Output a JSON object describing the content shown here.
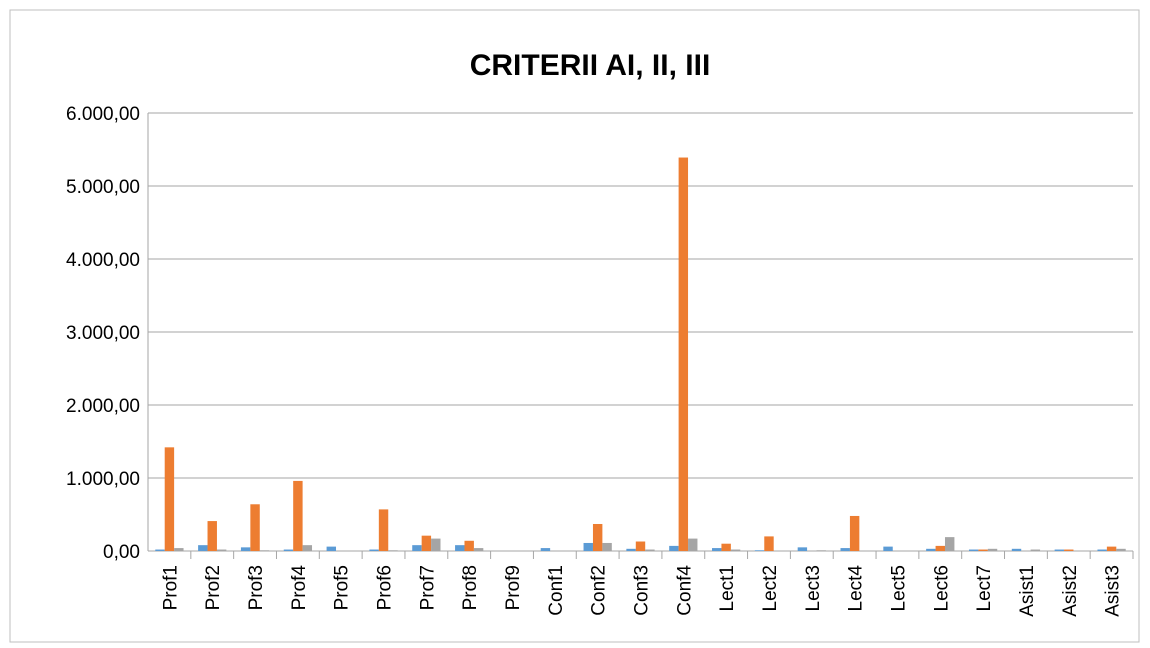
{
  "chart_data": {
    "type": "bar",
    "title": "CRITERII AI, II, III",
    "categories": [
      "Prof1",
      "Prof2",
      "Prof3",
      "Prof4",
      "Prof5",
      "Prof6",
      "Prof7",
      "Prof8",
      "Prof9",
      "Conf1",
      "Conf2",
      "Conf3",
      "Conf4",
      "Lect1",
      "Lect2",
      "Lect3",
      "Lect4",
      "Lect5",
      "Lect6",
      "Lect7",
      "Asist1",
      "Asist2",
      "Asist3"
    ],
    "series": [
      {
        "color": "#5b9bd5",
        "values": [
          20,
          80,
          50,
          20,
          60,
          20,
          80,
          80,
          0,
          40,
          110,
          30,
          70,
          40,
          10,
          50,
          40,
          60,
          30,
          20,
          30,
          20,
          20
        ]
      },
      {
        "color": "#ed7d31",
        "values": [
          1420,
          410,
          640,
          960,
          0,
          570,
          210,
          140,
          0,
          0,
          370,
          130,
          5390,
          100,
          200,
          0,
          480,
          0,
          70,
          20,
          0,
          20,
          60
        ]
      },
      {
        "color": "#a5a5a5",
        "values": [
          40,
          20,
          10,
          80,
          0,
          10,
          170,
          40,
          0,
          0,
          110,
          20,
          170,
          20,
          0,
          10,
          0,
          0,
          190,
          30,
          20,
          0,
          30
        ]
      }
    ],
    "ylim": [
      0,
      6000
    ],
    "yticks": [
      {
        "value": 0,
        "label": "0,00"
      },
      {
        "value": 1000,
        "label": "1.000,00"
      },
      {
        "value": 2000,
        "label": "2.000,00"
      },
      {
        "value": 3000,
        "label": "3.000,00"
      },
      {
        "value": 4000,
        "label": "4.000,00"
      },
      {
        "value": 5000,
        "label": "5.000,00"
      },
      {
        "value": 6000,
        "label": "6.000,00"
      }
    ],
    "grid": true
  }
}
